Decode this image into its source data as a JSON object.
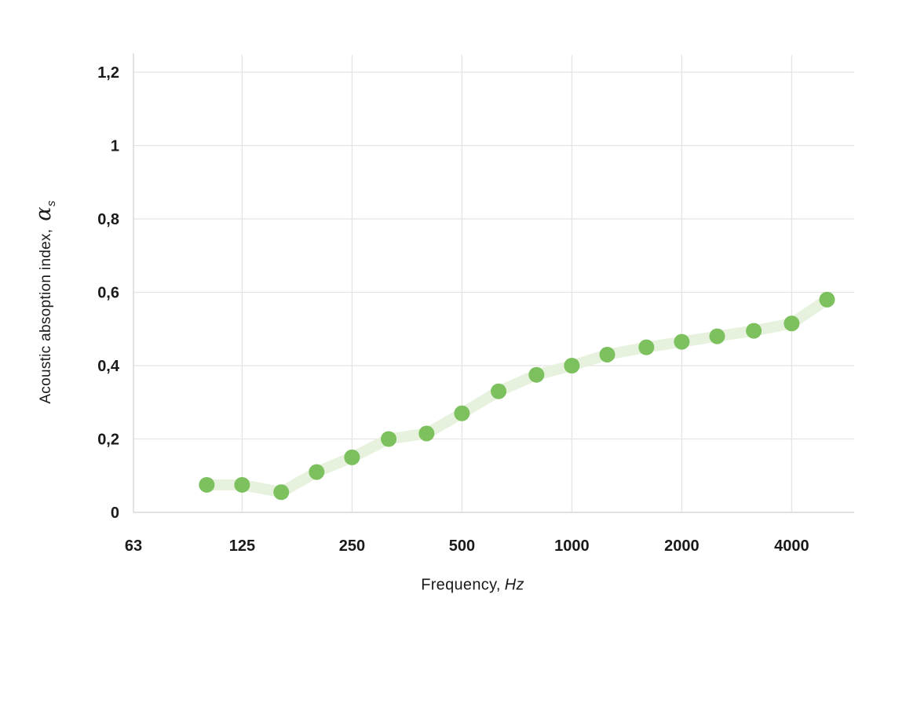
{
  "chart_data": {
    "type": "line",
    "title": "",
    "xlabel": {
      "text": "Frequency,",
      "unit": "Hz"
    },
    "ylabel": {
      "text": "Acoustic absoption index,",
      "symbol": "α",
      "subscript": "s"
    },
    "x_scale": "log2",
    "x": [
      100,
      125,
      160,
      200,
      250,
      315,
      400,
      500,
      630,
      800,
      1000,
      1250,
      1600,
      2000,
      2500,
      3150,
      4000,
      5000
    ],
    "values": [
      0.075,
      0.075,
      0.055,
      0.11,
      0.15,
      0.2,
      0.215,
      0.27,
      0.33,
      0.375,
      0.4,
      0.43,
      0.45,
      0.465,
      0.48,
      0.495,
      0.515,
      0.58
    ],
    "x_ticks": [
      {
        "value": 63,
        "label": "63",
        "gridline": false
      },
      {
        "value": 125,
        "label": "125",
        "gridline": true
      },
      {
        "value": 250,
        "label": "250",
        "gridline": true
      },
      {
        "value": 500,
        "label": "500",
        "gridline": true
      },
      {
        "value": 1000,
        "label": "1000",
        "gridline": true
      },
      {
        "value": 2000,
        "label": "2000",
        "gridline": true
      },
      {
        "value": 4000,
        "label": "4000",
        "gridline": true
      }
    ],
    "y_ticks": [
      {
        "value": 0,
        "label": "0"
      },
      {
        "value": 0.2,
        "label": "0,2"
      },
      {
        "value": 0.4,
        "label": "0,4"
      },
      {
        "value": 0.6,
        "label": "0,6"
      },
      {
        "value": 0.8,
        "label": "0,8"
      },
      {
        "value": 1,
        "label": "1"
      },
      {
        "value": 1.2,
        "label": "1,2"
      }
    ],
    "xlim": [
      63,
      5900
    ],
    "ylim": [
      0,
      1.25
    ],
    "grid": true,
    "legend_position": "none",
    "colors": {
      "point": "#7cc15e",
      "line": "#e6f2dd",
      "gridline": "#e4e4e4",
      "axis": "#d9d9d9",
      "text": "#1a1a1a"
    }
  }
}
